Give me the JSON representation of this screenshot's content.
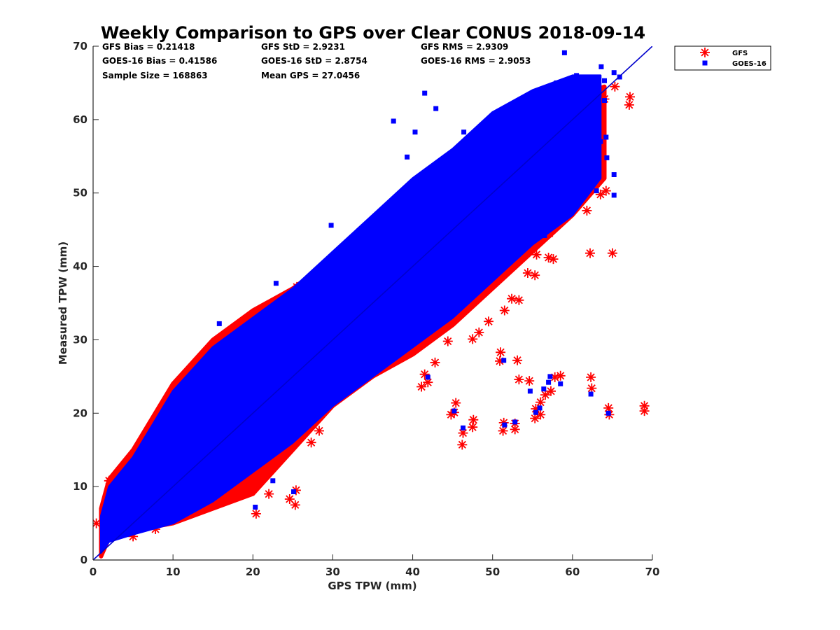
{
  "chart_data": {
    "type": "scatter",
    "title": "Weekly Comparison to GPS over Clear CONUS 2018-09-14",
    "xlabel": "GPS TPW (mm)",
    "ylabel": "Measured TPW (mm)",
    "xlim": [
      0,
      70
    ],
    "ylim": [
      0,
      70
    ],
    "xticks": [
      0,
      10,
      20,
      30,
      40,
      50,
      60,
      70
    ],
    "yticks": [
      0,
      10,
      20,
      30,
      40,
      50,
      60,
      70
    ],
    "grid": false,
    "legend_position": "outside-top-right",
    "reference_line": {
      "from": [
        0,
        0
      ],
      "to": [
        70,
        70
      ],
      "color": "#0000cc"
    },
    "stats": [
      [
        "GFS Bias = 0.21418",
        "GFS StD = 2.9231",
        "GFS RMS = 2.9309"
      ],
      [
        "GOES-16 Bias = 0.41586",
        "GOES-16 StD = 2.8754",
        "GOES-16 RMS = 2.9053"
      ],
      [
        "Sample Size = 168863",
        "Mean GPS = 27.0456",
        ""
      ]
    ],
    "series": [
      {
        "name": "GFS",
        "marker": "asterisk",
        "color": "#ff0000",
        "band": [
          {
            "x": 1,
            "lo": 0.5,
            "hi": 7
          },
          {
            "x": 2,
            "lo": 3,
            "hi": 11
          },
          {
            "x": 5,
            "lo": 4,
            "hi": 15
          },
          {
            "x": 10,
            "lo": 5,
            "hi": 24
          },
          {
            "x": 15,
            "lo": 7,
            "hi": 30
          },
          {
            "x": 20,
            "lo": 9,
            "hi": 34
          },
          {
            "x": 25,
            "lo": 15,
            "hi": 37
          },
          {
            "x": 30,
            "lo": 21,
            "hi": 41
          },
          {
            "x": 35,
            "lo": 25,
            "hi": 44
          },
          {
            "x": 40,
            "lo": 28,
            "hi": 49
          },
          {
            "x": 45,
            "lo": 32,
            "hi": 53
          },
          {
            "x": 50,
            "lo": 37,
            "hi": 57
          },
          {
            "x": 55,
            "lo": 42,
            "hi": 60
          },
          {
            "x": 60,
            "lo": 47,
            "hi": 63
          },
          {
            "x": 64,
            "lo": 52,
            "hi": 64.5
          }
        ],
        "points": [
          [
            65.3,
            64.5
          ],
          [
            67.2,
            63.1
          ],
          [
            67.1,
            62.0
          ],
          [
            64.0,
            62.8
          ],
          [
            62.2,
            41.8
          ],
          [
            65.0,
            41.8
          ],
          [
            61.8,
            47.6
          ],
          [
            63.5,
            49.8
          ],
          [
            64.2,
            50.3
          ],
          [
            57.6,
            41.0
          ],
          [
            57.0,
            41.2
          ],
          [
            55.3,
            38.8
          ],
          [
            53.3,
            35.4
          ],
          [
            51.5,
            34.0
          ],
          [
            42.8,
            26.9
          ],
          [
            41.9,
            24.2
          ],
          [
            41.1,
            23.6
          ],
          [
            41.5,
            25.3
          ],
          [
            51.0,
            28.3
          ],
          [
            50.9,
            27.1
          ],
          [
            53.1,
            27.2
          ],
          [
            53.3,
            24.6
          ],
          [
            54.6,
            24.4
          ],
          [
            57.8,
            24.9
          ],
          [
            57.3,
            23.0
          ],
          [
            56.6,
            22.5
          ],
          [
            56.0,
            21.5
          ],
          [
            55.4,
            20.6
          ],
          [
            55.3,
            19.3
          ],
          [
            56.0,
            19.8
          ],
          [
            58.5,
            25.1
          ],
          [
            62.3,
            24.9
          ],
          [
            62.4,
            23.4
          ],
          [
            64.5,
            20.7
          ],
          [
            64.6,
            19.8
          ],
          [
            69.0,
            21.0
          ],
          [
            69.0,
            20.3
          ],
          [
            45.4,
            21.4
          ],
          [
            45.2,
            20.1
          ],
          [
            44.8,
            19.8
          ],
          [
            47.6,
            19.1
          ],
          [
            47.5,
            18.1
          ],
          [
            46.3,
            17.3
          ],
          [
            46.2,
            15.7
          ],
          [
            51.4,
            18.7
          ],
          [
            51.3,
            17.6
          ],
          [
            52.8,
            18.6
          ],
          [
            52.8,
            17.8
          ],
          [
            25.4,
            9.5
          ],
          [
            24.6,
            8.3
          ],
          [
            25.3,
            7.5
          ],
          [
            20.4,
            6.3
          ],
          [
            19.5,
            9.2
          ],
          [
            22.0,
            9.0
          ],
          [
            27.3,
            16.0
          ],
          [
            28.3,
            17.6
          ],
          [
            29.5,
            21.7
          ],
          [
            31.0,
            24.0
          ],
          [
            33.5,
            26.5
          ],
          [
            36.5,
            28.8
          ],
          [
            39.6,
            29.6
          ],
          [
            44.4,
            29.8
          ],
          [
            47.5,
            30.1
          ],
          [
            48.3,
            31.0
          ],
          [
            49.5,
            32.5
          ],
          [
            52.4,
            35.6
          ],
          [
            54.4,
            39.1
          ],
          [
            55.5,
            41.6
          ],
          [
            57.1,
            44.5
          ],
          [
            58.3,
            47.7
          ],
          [
            59.8,
            50.6
          ],
          [
            61.6,
            54.0
          ],
          [
            63.6,
            56.3
          ],
          [
            61.2,
            57.4
          ],
          [
            2.0,
            10.8
          ],
          [
            2.5,
            11.0
          ],
          [
            10.8,
            24.0
          ],
          [
            11.7,
            24.3
          ],
          [
            20.4,
            33.7
          ],
          [
            22.5,
            34.1
          ],
          [
            25.5,
            37.2
          ],
          [
            28.5,
            38.7
          ],
          [
            15.6,
            29.9
          ],
          [
            10.2,
            5.6
          ],
          [
            7.8,
            4.2
          ],
          [
            5.0,
            3.2
          ],
          [
            1.5,
            4.3
          ],
          [
            0.4,
            5.0
          ]
        ]
      },
      {
        "name": "GOES-16",
        "marker": "square",
        "color": "#0000ff",
        "band": [
          {
            "x": 1,
            "lo": 1,
            "hi": 6
          },
          {
            "x": 2,
            "lo": 2.5,
            "hi": 10
          },
          {
            "x": 5,
            "lo": 3.5,
            "hi": 14
          },
          {
            "x": 10,
            "lo": 5,
            "hi": 23
          },
          {
            "x": 15,
            "lo": 8,
            "hi": 29
          },
          {
            "x": 20,
            "lo": 12,
            "hi": 33
          },
          {
            "x": 25,
            "lo": 16,
            "hi": 37
          },
          {
            "x": 30,
            "lo": 21,
            "hi": 42
          },
          {
            "x": 35,
            "lo": 25,
            "hi": 47
          },
          {
            "x": 40,
            "lo": 29,
            "hi": 52
          },
          {
            "x": 45,
            "lo": 33,
            "hi": 56
          },
          {
            "x": 50,
            "lo": 38,
            "hi": 61
          },
          {
            "x": 55,
            "lo": 43,
            "hi": 64
          },
          {
            "x": 60,
            "lo": 47,
            "hi": 66
          },
          {
            "x": 63.5,
            "lo": 52,
            "hi": 66
          }
        ],
        "points": [
          [
            59.0,
            69.1
          ],
          [
            63.6,
            67.2
          ],
          [
            65.2,
            66.4
          ],
          [
            65.9,
            65.8
          ],
          [
            64.0,
            65.3
          ],
          [
            60.5,
            66.0
          ],
          [
            41.5,
            63.6
          ],
          [
            42.9,
            61.5
          ],
          [
            37.6,
            59.8
          ],
          [
            46.4,
            58.3
          ],
          [
            40.3,
            58.3
          ],
          [
            39.3,
            54.9
          ],
          [
            29.8,
            45.6
          ],
          [
            27.2,
            38.7
          ],
          [
            22.9,
            37.7
          ],
          [
            15.8,
            32.2
          ],
          [
            36.1,
            41.6
          ],
          [
            38.9,
            47.6
          ],
          [
            44.4,
            51.6
          ],
          [
            47.0,
            56.0
          ],
          [
            50.0,
            60.0
          ],
          [
            53.0,
            62.0
          ],
          [
            55.5,
            63.5
          ],
          [
            58.0,
            65.0
          ],
          [
            64.2,
            57.6
          ],
          [
            64.3,
            54.8
          ],
          [
            63.5,
            57.0
          ],
          [
            65.2,
            52.5
          ],
          [
            63.0,
            50.3
          ],
          [
            65.2,
            49.7
          ],
          [
            59.4,
            51.8
          ],
          [
            60.0,
            49.2
          ],
          [
            64.0,
            62.6
          ],
          [
            57.2,
            46.0
          ],
          [
            56.5,
            44.2
          ],
          [
            51.4,
            27.2
          ],
          [
            57.2,
            25.0
          ],
          [
            57.0,
            24.2
          ],
          [
            58.5,
            24.0
          ],
          [
            54.7,
            23.0
          ],
          [
            56.4,
            23.3
          ],
          [
            62.3,
            22.6
          ],
          [
            64.5,
            20.0
          ],
          [
            55.4,
            20.1
          ],
          [
            55.9,
            20.7
          ],
          [
            46.3,
            18.0
          ],
          [
            51.5,
            18.4
          ],
          [
            52.8,
            18.8
          ],
          [
            45.2,
            20.3
          ],
          [
            41.9,
            24.9
          ],
          [
            25.1,
            9.3
          ],
          [
            22.5,
            10.8
          ],
          [
            20.3,
            7.2
          ],
          [
            3.0,
            10.4
          ]
        ]
      }
    ]
  }
}
